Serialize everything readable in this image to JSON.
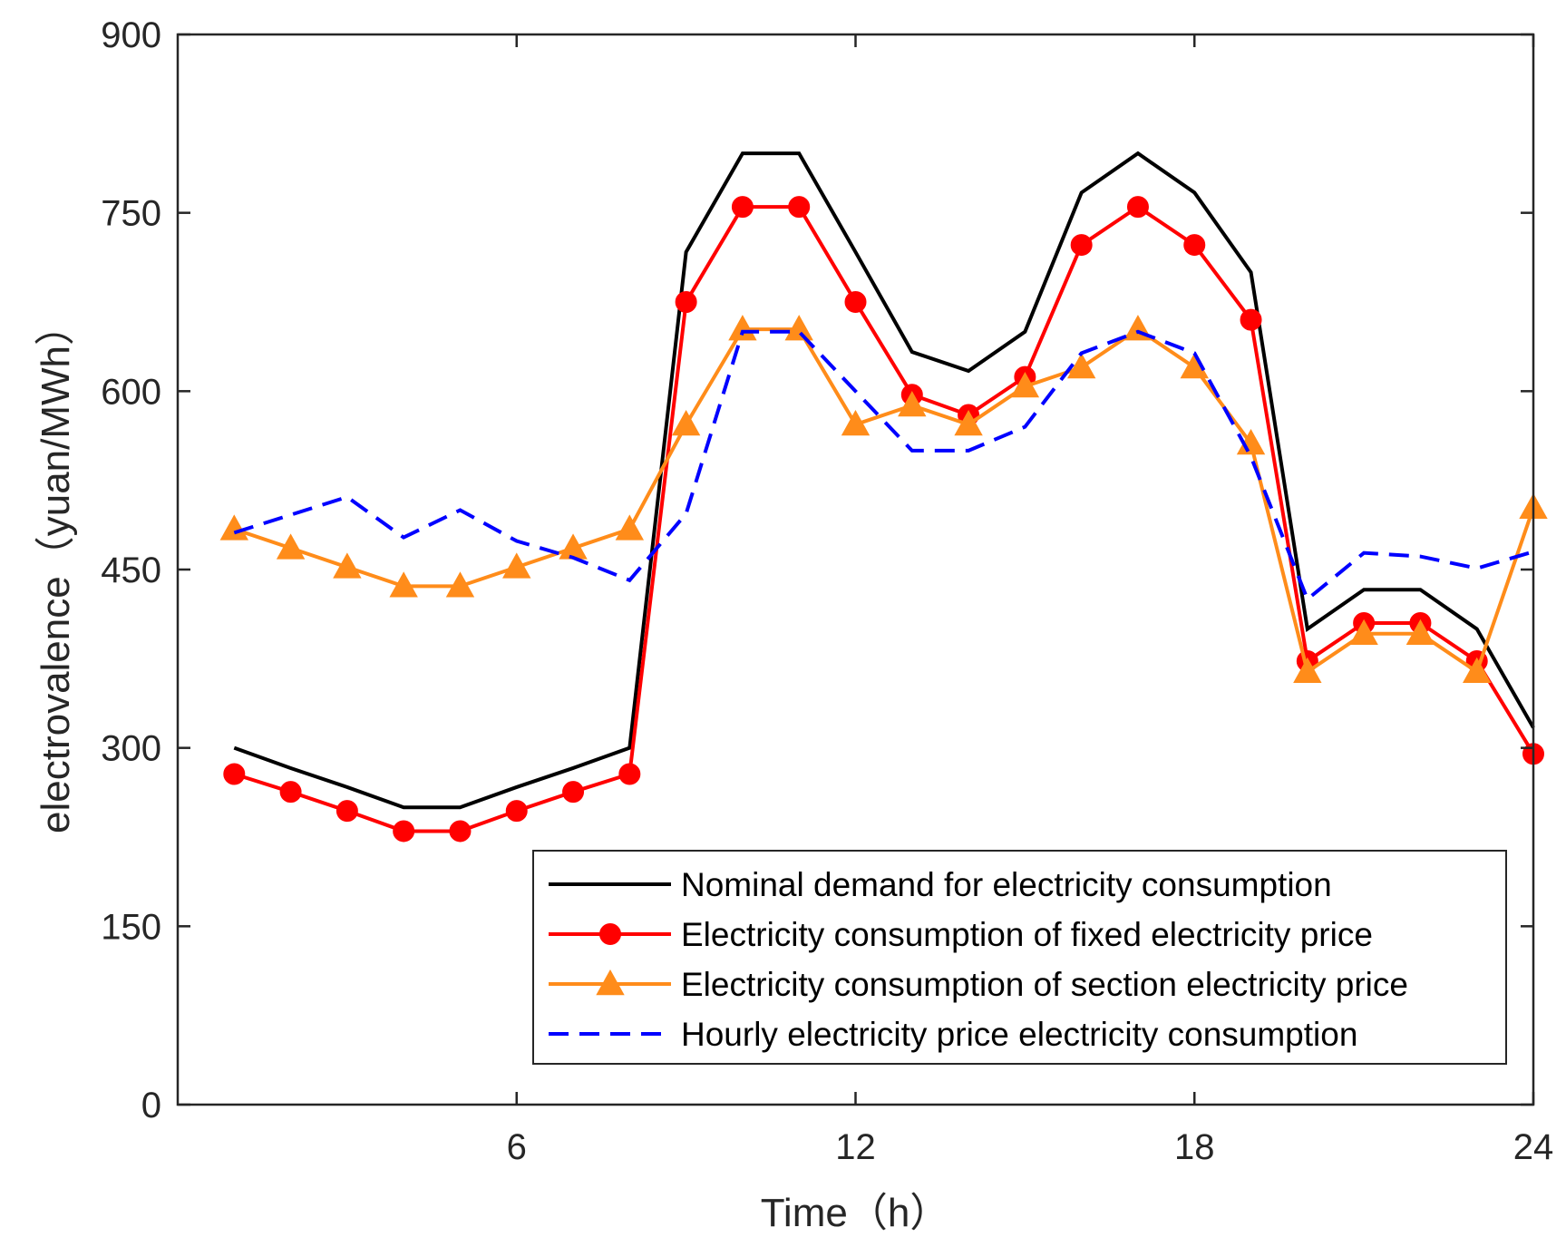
{
  "chart_data": {
    "type": "line",
    "title": "",
    "xlabel": "Time（h）",
    "ylabel": "electrovalence（yuan/MWh）",
    "xlim": [
      0,
      24
    ],
    "ylim": [
      0,
      900
    ],
    "xticks": [
      6,
      12,
      18,
      24
    ],
    "yticks": [
      0,
      150,
      300,
      450,
      600,
      750,
      900
    ],
    "grid": false,
    "legend_position": "bottom-right",
    "x": [
      1,
      2,
      3,
      4,
      5,
      6,
      7,
      8,
      9,
      10,
      11,
      12,
      13,
      14,
      15,
      16,
      17,
      18,
      19,
      20,
      21,
      22,
      23,
      24
    ],
    "series": [
      {
        "name": "Nominal demand for electricity consumption",
        "color": "#000000",
        "style": "solid",
        "marker": "none",
        "values": [
          300,
          283,
          267,
          250,
          250,
          267,
          283,
          300,
          717,
          800,
          800,
          717,
          633,
          617,
          650,
          767,
          800,
          767,
          700,
          400,
          433,
          433,
          400,
          317
        ]
      },
      {
        "name": "Electricity consumption of fixed electricity price",
        "color": "#ff0000",
        "style": "solid",
        "marker": "circle",
        "values": [
          278,
          263,
          247,
          230,
          230,
          247,
          263,
          278,
          675,
          755,
          755,
          675,
          597,
          580,
          612,
          723,
          755,
          723,
          660,
          373,
          405,
          405,
          373,
          295
        ]
      },
      {
        "name": "Electricity consumption of section electricity price",
        "color": "#ff8c1a",
        "style": "solid",
        "marker": "triangle",
        "values": [
          484,
          468,
          452,
          436,
          436,
          452,
          468,
          484,
          572,
          652,
          652,
          572,
          588,
          572,
          604,
          620,
          652,
          620,
          556,
          364,
          396,
          396,
          364,
          502
        ]
      },
      {
        "name": "Hourly electricity price electricity consumption",
        "color": "#0000ff",
        "style": "dashed",
        "marker": "none",
        "values": [
          481,
          496,
          511,
          477,
          500,
          474,
          460,
          441,
          497,
          650,
          650,
          600,
          550,
          550,
          570,
          632,
          650,
          632,
          545,
          425,
          464,
          461,
          451,
          465
        ]
      }
    ]
  }
}
